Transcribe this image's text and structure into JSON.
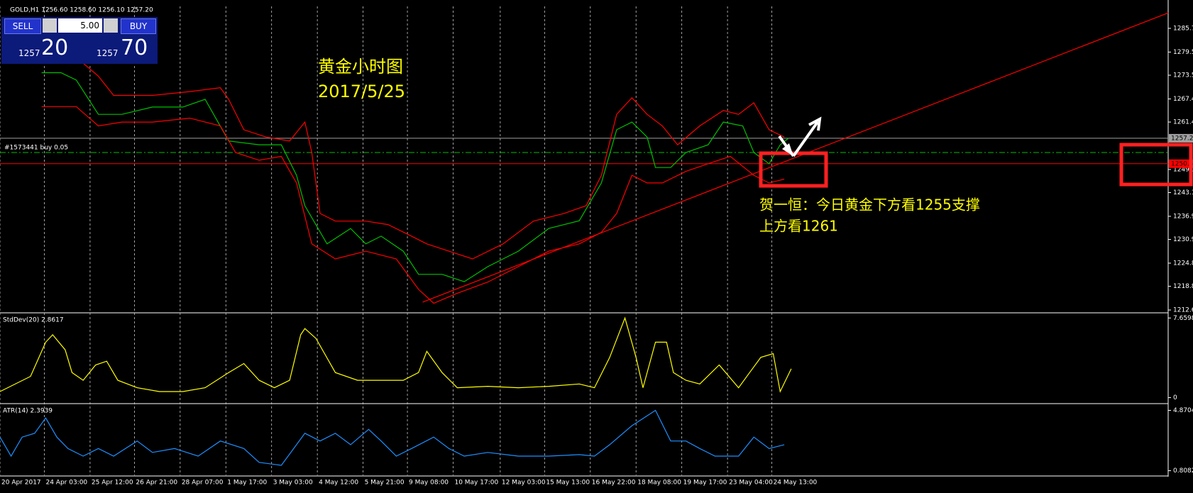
{
  "trade_panel": {
    "sell": "SELL",
    "buy": "BUY",
    "volume": "5.00",
    "bid_prefix": "1257",
    "bid_pips": "20",
    "ask_prefix": "1257",
    "ask_pips": "70"
  },
  "chart_data": [
    {
      "type": "line",
      "title": "GOLD,H1  1256.60 1258.60 1256.10 1257.20",
      "xlim": [
        0,
        843
      ],
      "ylim": [
        1212.1,
        1291.4
      ],
      "xticks": [
        {
          "value": 0,
          "label": "20 Apr 2017"
        },
        {
          "value": 32,
          "label": "24 Apr 03:00"
        },
        {
          "value": 65,
          "label": "25 Apr 12:00"
        },
        {
          "value": 97,
          "label": "26 Apr 21:00"
        },
        {
          "value": 130,
          "label": "28 Apr 07:00"
        },
        {
          "value": 163,
          "label": "1 May 17:00"
        },
        {
          "value": 196,
          "label": "3 May 03:00"
        },
        {
          "value": 229,
          "label": "4 May 12:00"
        },
        {
          "value": 262,
          "label": "5 May 21:00"
        },
        {
          "value": 294,
          "label": "9 May 08:00"
        },
        {
          "value": 327,
          "label": "10 May 17:00"
        },
        {
          "value": 361,
          "label": "12 May 03:00"
        },
        {
          "value": 393,
          "label": "15 May 13:00"
        },
        {
          "value": 426,
          "label": "16 May 22:00"
        },
        {
          "value": 459,
          "label": "18 May 08:00"
        },
        {
          "value": 492,
          "label": "19 May 17:00"
        },
        {
          "value": 525,
          "label": "23 May 04:00"
        },
        {
          "value": 557,
          "label": "24 May 13:00"
        }
      ],
      "yticks": [
        1212.65,
        {
          "value": 1218.8,
          "label": "1218.80"
        },
        {
          "value": 1224.8,
          "label": "1224.80"
        },
        1230.95,
        1236.95,
        {
          "value": 1243.1,
          "label": "1243.10"
        },
        {
          "value": 1249.1,
          "label": "1249.10"
        },
        {
          "value": 1261.4,
          "label": "1261.40"
        },
        {
          "value": 1267.4,
          "label": "1267.40"
        },
        1273.55,
        1279.55,
        {
          "value": 1285.7,
          "label": "1285.70"
        }
      ],
      "grid": true,
      "series": [
        {
          "color": "#00c000",
          "x": [
            30,
            44,
            55,
            71,
            88,
            110,
            132,
            148,
            165,
            187,
            203,
            214,
            220,
            236,
            253,
            264,
            275,
            291,
            302,
            319,
            335,
            352,
            374,
            396,
            418,
            434,
            445,
            456,
            467,
            473,
            484,
            495,
            511,
            522,
            536,
            544,
            555,
            563,
            569
          ],
          "values": [
            1274.2,
            1274.2,
            1272.3,
            1263.4,
            1263.4,
            1265.3,
            1265.3,
            1267.3,
            1256.5,
            1255.5,
            1255.5,
            1247.6,
            1239.7,
            1229.8,
            1233.8,
            1229.8,
            1231.8,
            1227.9,
            1221.9,
            1221.9,
            1220.0,
            1223.9,
            1227.9,
            1233.8,
            1235.8,
            1245.6,
            1259.4,
            1261.4,
            1257.5,
            1249.6,
            1249.6,
            1253.5,
            1255.5,
            1261.4,
            1260.4,
            1253.5,
            1250.6,
            1255.5,
            1257.2
          ]
        },
        {
          "color": "#ff0000",
          "x": [
            30,
            55,
            71,
            82,
            110,
            137,
            159,
            165,
            176,
            192,
            209,
            220,
            225,
            231,
            242,
            264,
            280,
            297,
            308,
            324,
            341,
            363,
            385,
            407,
            423,
            434,
            445,
            456,
            467,
            478,
            489,
            505,
            522,
            533,
            544,
            555,
            566
          ],
          "values": [
            1277.2,
            1278.2,
            1273.3,
            1268.3,
            1268.3,
            1269.3,
            1270.3,
            1267.3,
            1259.4,
            1257.5,
            1256.5,
            1261.4,
            1253.5,
            1237.7,
            1235.7,
            1235.7,
            1234.8,
            1231.8,
            1229.8,
            1227.9,
            1225.9,
            1229.8,
            1235.7,
            1237.7,
            1239.7,
            1247.6,
            1263.4,
            1267.7,
            1263.4,
            1260.4,
            1255.5,
            1260.4,
            1264.4,
            1263.4,
            1266.4,
            1259.4,
            1257.5
          ]
        },
        {
          "color": "#ff0000",
          "x": [
            30,
            55,
            71,
            88,
            110,
            137,
            159,
            170,
            187,
            203,
            214,
            225,
            242,
            264,
            286,
            302,
            313,
            330,
            352,
            374,
            396,
            418,
            434,
            445,
            456,
            467,
            478,
            495,
            511,
            527,
            544,
            555,
            566
          ],
          "values": [
            1265.4,
            1265.4,
            1260.4,
            1261.4,
            1261.4,
            1262.4,
            1260.4,
            1253.5,
            1251.5,
            1252.5,
            1245.6,
            1229.8,
            1225.9,
            1227.9,
            1225.9,
            1218.0,
            1214.4,
            1217.0,
            1219.9,
            1223.9,
            1227.9,
            1229.8,
            1232.8,
            1237.7,
            1247.6,
            1245.6,
            1245.6,
            1248.6,
            1250.6,
            1252.5,
            1247.6,
            1245.6,
            1246.6
          ]
        },
        {
          "color": "#ff0000",
          "x": [
            305,
            843
          ],
          "values": [
            1214.7,
            1289.7
          ]
        }
      ],
      "price_lines": [
        {
          "value": 1257.2,
          "axis_label": "1257.20",
          "color": "#a0a0a0"
        },
        {
          "value": 1253.5,
          "label": "#1573441 buy 0.05",
          "color": "#00c000",
          "dash": true
        },
        {
          "value": 1250.6,
          "axis_label": "1250.6",
          "color": "#ff0000"
        }
      ],
      "annotations": [
        "黄金小时图",
        "2017/5/25",
        "贺一恒：今日黄金下方看1255支撑",
        "上方看1261"
      ]
    },
    {
      "type": "line",
      "title": "StdDev(20) 2.8617",
      "xlim": [
        0,
        843
      ],
      "ylim": [
        -0.51,
        8.02
      ],
      "yticks": [
        {
          "value": 7.6598,
          "label": "7.6598"
        },
        0
      ],
      "series": [
        {
          "color": "#ffff00",
          "x": [
            0,
            22,
            33,
            38,
            47,
            52,
            60,
            69,
            77,
            85,
            99,
            115,
            132,
            148,
            165,
            176,
            187,
            198,
            209,
            217,
            220,
            228,
            242,
            258,
            275,
            291,
            302,
            308,
            319,
            330,
            352,
            374,
            396,
            418,
            429,
            440,
            451,
            459,
            464,
            473,
            481,
            486,
            495,
            505,
            519,
            533,
            541,
            549,
            558,
            563,
            571
          ],
          "values": [
            0.58,
            2.04,
            5.33,
            6.05,
            4.6,
            2.41,
            1.67,
            3.14,
            3.5,
            1.67,
            0.95,
            0.58,
            0.58,
            0.95,
            2.41,
            3.28,
            1.67,
            0.95,
            1.67,
            6.05,
            6.64,
            5.69,
            2.41,
            1.67,
            1.67,
            1.67,
            2.41,
            4.45,
            2.41,
            0.95,
            1.09,
            0.95,
            1.09,
            1.31,
            0.95,
            3.87,
            7.66,
            3.87,
            0.95,
            5.33,
            5.33,
            2.41,
            1.67,
            1.31,
            3.14,
            0.95,
            2.41,
            3.87,
            4.23,
            0.58,
            2.77
          ]
        }
      ]
    },
    {
      "type": "line",
      "title": "ATR(14) 2.3939",
      "xlim": [
        0,
        843
      ],
      "ylim": [
        0.5,
        5.23
      ],
      "yticks": [
        {
          "value": 4.8704,
          "label": "4.8704"
        },
        0.8082
      ],
      "series": [
        {
          "color": "#1e90ff",
          "x": [
            0,
            8,
            16,
            25,
            33,
            41,
            49,
            60,
            71,
            82,
            99,
            110,
            126,
            143,
            159,
            176,
            187,
            203,
            220,
            231,
            242,
            253,
            266,
            275,
            286,
            297,
            313,
            324,
            335,
            352,
            374,
            396,
            418,
            429,
            440,
            456,
            473,
            484,
            495,
            505,
            516,
            533,
            544,
            555,
            566
          ],
          "values": [
            3.07,
            1.79,
            3.07,
            3.33,
            4.36,
            3.07,
            2.3,
            1.79,
            2.3,
            1.79,
            2.81,
            2.04,
            2.3,
            1.79,
            2.81,
            2.3,
            1.37,
            1.17,
            3.33,
            2.81,
            3.33,
            2.56,
            3.59,
            2.81,
            1.79,
            2.3,
            3.07,
            2.3,
            1.79,
            2.04,
            1.79,
            1.79,
            1.89,
            1.79,
            2.56,
            3.84,
            4.87,
            2.81,
            2.81,
            2.3,
            1.79,
            1.79,
            3.07,
            2.3,
            2.56
          ]
        }
      ]
    }
  ]
}
